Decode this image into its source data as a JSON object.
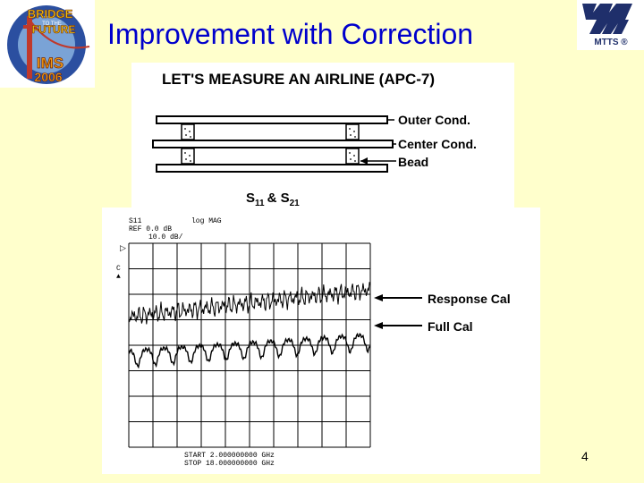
{
  "slide": {
    "title": "Improvement with Correction",
    "page_number": "4"
  },
  "logos": {
    "ims": {
      "line1": "BRIDGE",
      "line2": "TO THE",
      "line3": "FUTURE",
      "line4": "IMS",
      "line5": "2006",
      "ring_text": "IEEE MTT-S SAN FRANCISCO"
    },
    "mtts": {
      "text": "MTTS ®"
    }
  },
  "diagram": {
    "heading": "LET'S MEASURE AN AIRLINE (APC-7)",
    "labels": [
      "Outer Cond.",
      "Center Cond.",
      "Bead"
    ],
    "s_params_base1": "S",
    "s_params_sub1": "11",
    "s_params_amp": "& S",
    "s_params_sub2": "21"
  },
  "analyzer": {
    "param": "S11",
    "format": "log MAG",
    "ref": "REF  0.0  dB",
    "scale": "10.0  dB/",
    "marker_symbol": "▷",
    "side_label": "C\n▲",
    "start": "START    2.000000000  GHz",
    "stop": "STOP    18.000000000  GHz",
    "annotations": [
      "Response Cal",
      "Full Cal"
    ],
    "colors": {
      "trace": "#000000",
      "grid": "#000000",
      "arrow": "#000000"
    }
  }
}
